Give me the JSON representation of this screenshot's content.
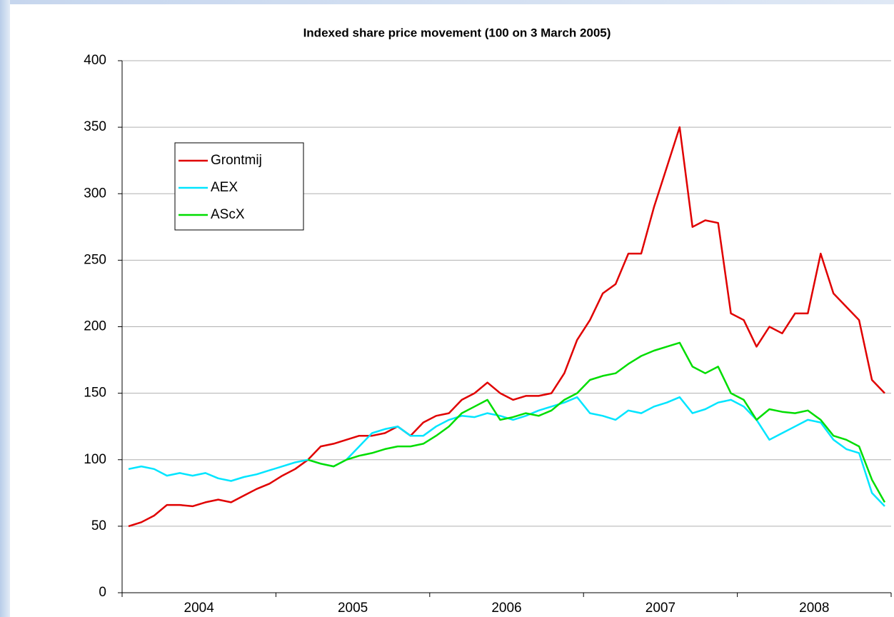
{
  "chart_data": {
    "type": "line",
    "title": "Indexed share price movement (100 on 3 March 2005)",
    "categories": [
      null,
      null,
      null,
      null,
      null,
      null,
      "2004",
      null,
      null,
      null,
      null,
      null,
      null,
      null,
      null,
      null,
      null,
      null,
      "2005",
      null,
      null,
      null,
      null,
      null,
      null,
      null,
      null,
      null,
      null,
      null,
      "2006",
      null,
      null,
      null,
      null,
      null,
      null,
      null,
      null,
      null,
      null,
      null,
      "2007",
      null,
      null,
      null,
      null,
      null,
      null,
      null,
      null,
      null,
      null,
      null,
      "2008",
      null,
      null,
      null,
      null,
      null
    ],
    "series": [
      {
        "name": "Grontmij",
        "color": "#e00000",
        "values": [
          50,
          53,
          58,
          66,
          66,
          65,
          68,
          70,
          68,
          73,
          78,
          82,
          88,
          93,
          100,
          110,
          112,
          115,
          118,
          118,
          120,
          125,
          118,
          128,
          133,
          135,
          145,
          150,
          158,
          150,
          145,
          148,
          148,
          150,
          165,
          190,
          205,
          225,
          232,
          255,
          255,
          290,
          320,
          350,
          275,
          280,
          278,
          210,
          205,
          185,
          200,
          195,
          210,
          210,
          255,
          225,
          215,
          205,
          160,
          150
        ]
      },
      {
        "name": "AEX",
        "color": "#00e5ff",
        "values": [
          93,
          95,
          93,
          88,
          90,
          88,
          90,
          86,
          84,
          87,
          89,
          92,
          95,
          98,
          100,
          97,
          95,
          100,
          110,
          120,
          123,
          125,
          118,
          118,
          125,
          130,
          133,
          132,
          135,
          133,
          130,
          133,
          137,
          140,
          143,
          147,
          135,
          133,
          130,
          137,
          135,
          140,
          143,
          147,
          135,
          138,
          143,
          145,
          140,
          130,
          115,
          120,
          125,
          130,
          128,
          115,
          108,
          105,
          75,
          65
        ]
      },
      {
        "name": "AScX",
        "color": "#00dd00",
        "values": [
          null,
          null,
          null,
          null,
          null,
          null,
          null,
          null,
          null,
          null,
          null,
          null,
          null,
          null,
          100,
          97,
          95,
          100,
          103,
          105,
          108,
          110,
          110,
          112,
          118,
          125,
          135,
          140,
          145,
          130,
          132,
          135,
          133,
          137,
          145,
          150,
          160,
          163,
          165,
          172,
          178,
          182,
          185,
          188,
          170,
          165,
          170,
          150,
          145,
          130,
          138,
          136,
          135,
          137,
          130,
          118,
          115,
          110,
          85,
          68
        ]
      }
    ],
    "ylim": [
      0,
      400
    ],
    "yticks": [
      0,
      50,
      100,
      150,
      200,
      250,
      300,
      350,
      400
    ],
    "grid": true,
    "legend": "upper left"
  }
}
